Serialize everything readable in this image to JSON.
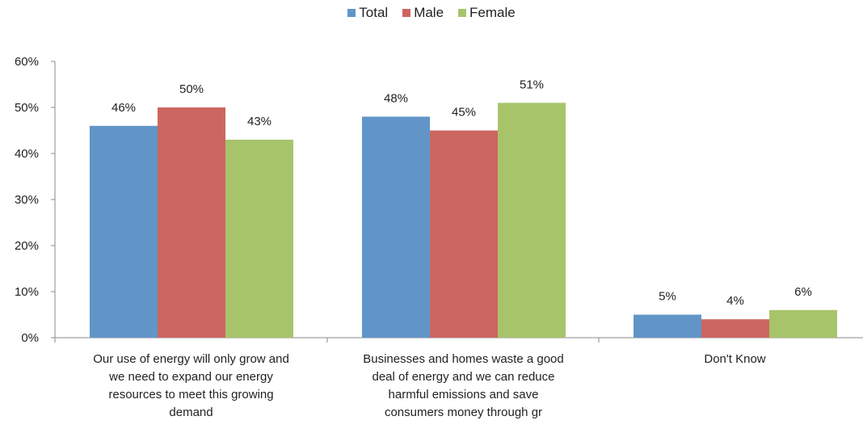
{
  "chart_data": {
    "type": "bar",
    "categories": [
      "Our use of energy will only grow and we need to expand our energy resources to meet this growing demand",
      "Businesses and homes waste a good deal of energy and we can reduce harmful emissions and save consumers money through gr",
      "Don't Know"
    ],
    "category_lines": [
      [
        "Our use of energy will only grow and",
        "we need to expand our energy",
        "resources to meet this growing",
        "demand"
      ],
      [
        "Businesses and homes waste a good",
        "deal of energy and we can reduce",
        "harmful emissions and save",
        "consumers money through gr"
      ],
      [
        "Don't Know"
      ]
    ],
    "series": [
      {
        "name": "Total",
        "color": "#6195C8",
        "values": [
          46,
          48,
          5
        ],
        "labels": [
          "46%",
          "48%",
          "5%"
        ]
      },
      {
        "name": "Male",
        "color": "#CC6660",
        "values": [
          50,
          45,
          4
        ],
        "labels": [
          "50%",
          "45%",
          "4%"
        ]
      },
      {
        "name": "Female",
        "color": "#A8C46A",
        "values": [
          43,
          51,
          6
        ],
        "labels": [
          "43%",
          "51%",
          "6%"
        ]
      }
    ],
    "y_ticks": [
      "0%",
      "10%",
      "20%",
      "30%",
      "40%",
      "50%",
      "60%"
    ],
    "ylim": [
      0,
      60
    ],
    "legend_position": "top-center",
    "title": "",
    "xlabel": "",
    "ylabel": ""
  }
}
